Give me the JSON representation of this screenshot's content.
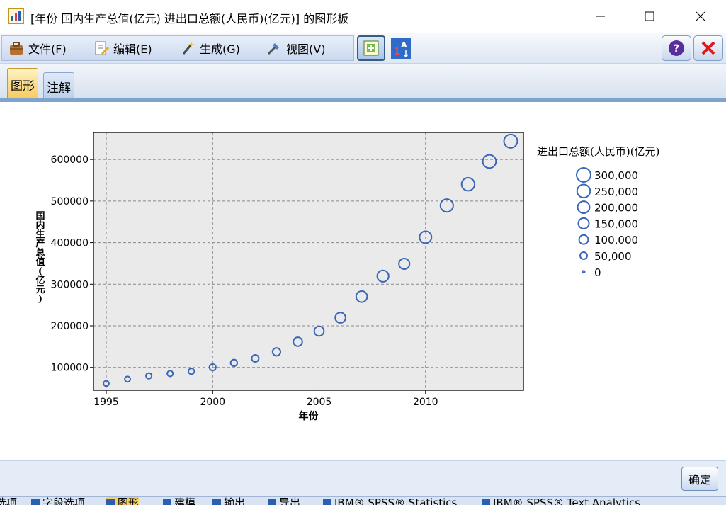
{
  "window": {
    "title": "[年份 国内生产总值(亿元) 进出口总额(人民币)(亿元)] 的图形板"
  },
  "menu": {
    "file": "文件(F)",
    "edit": "编辑(E)",
    "generate": "生成(G)",
    "view": "视图(V)"
  },
  "tabs": {
    "graph": "图形",
    "annotation": "注解"
  },
  "buttons": {
    "ok": "确定"
  },
  "chart_data": {
    "type": "scatter",
    "xlabel": "年份",
    "ylabel": "国内生产总值(亿元)",
    "x": [
      1995,
      1996,
      1997,
      1998,
      1999,
      2000,
      2001,
      2002,
      2003,
      2004,
      2005,
      2006,
      2007,
      2008,
      2009,
      2010,
      2011,
      2012,
      2013,
      2014
    ],
    "y": [
      61340,
      71814,
      79715,
      85196,
      90564,
      100280,
      110863,
      121717,
      137422,
      161840,
      187319,
      219439,
      270232,
      319516,
      349081,
      413030,
      489301,
      540367,
      595244,
      643974
    ],
    "size_values": [
      23500,
      24100,
      26970,
      26850,
      29900,
      39270,
      42180,
      51380,
      70480,
      95540,
      116920,
      140970,
      166860,
      179920,
      150650,
      201720,
      236400,
      244160,
      258170,
      264240
    ],
    "size_legend_title": "进出口总额(人民币)(亿元)",
    "size_legend": [
      "300,000",
      "250,000",
      "200,000",
      "150,000",
      "100,000",
      "50,000",
      "0"
    ],
    "size_legend_values": [
      300000,
      250000,
      200000,
      150000,
      100000,
      50000,
      0
    ],
    "xticks": [
      "1995",
      "2000",
      "2005",
      "2010"
    ],
    "xtick_values": [
      1995,
      2000,
      2005,
      2010
    ],
    "yticks": [
      "100000",
      "200000",
      "300000",
      "400000",
      "500000",
      "600000"
    ],
    "ytick_values": [
      100000,
      200000,
      300000,
      400000,
      500000,
      600000
    ],
    "xlim": [
      1994.4,
      2014.6
    ],
    "ylim": [
      45000,
      665000
    ],
    "grid": true,
    "legend_placement": "right",
    "colors": {
      "point": "#3a66b5",
      "plot_bg": "#eaeaea",
      "grid": "#888888"
    }
  },
  "underlying_app": {
    "tabs": [
      "选项",
      "字段选项",
      "图形",
      "建模",
      "输出",
      "导出",
      "IBM® SPSS® Statistics",
      "IBM® SPSS® Text Analytics"
    ]
  }
}
